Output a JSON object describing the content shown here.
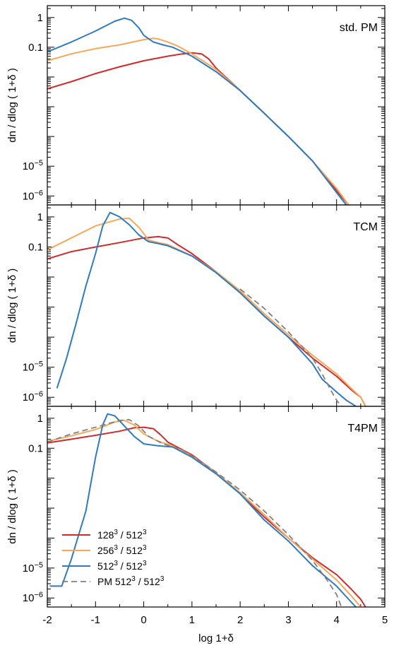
{
  "figure": {
    "xlabel": "log 1+δ",
    "ylabel": "dn / dlog ( 1+δ )",
    "xlim": [
      -2,
      5
    ],
    "x_ticks": [
      "-2",
      "-1",
      "0",
      "1",
      "2",
      "3",
      "4",
      "5"
    ],
    "y_scale": "log",
    "ylim": [
      5e-07,
      2.5
    ],
    "y_tick_labels": [
      {
        "value": 1,
        "base": "1",
        "exp": ""
      },
      {
        "value": 0.1,
        "base": "0.1",
        "exp": ""
      },
      {
        "value": 1e-05,
        "base": "10",
        "exp": "−5"
      },
      {
        "value": 1e-06,
        "base": "10",
        "exp": "−6"
      }
    ],
    "colors": {
      "red": "#d12a2a",
      "orange": "#f5a85a",
      "blue": "#2f7bbf",
      "gray": "#808080"
    }
  },
  "legend": {
    "placement": "lower-left of bottom panel",
    "items": [
      {
        "base": "128",
        "exp1": "3",
        "mid": " / 512",
        "exp2": "3",
        "color": "#d12a2a",
        "dashed": false
      },
      {
        "base": "256",
        "exp1": "3",
        "mid": " / 512",
        "exp2": "3",
        "color": "#f5a85a",
        "dashed": false
      },
      {
        "base": "512",
        "exp1": "3",
        "mid": " / 512",
        "exp2": "3",
        "color": "#2f7bbf",
        "dashed": false
      },
      {
        "base": "PM 512",
        "exp1": "3",
        "mid": " / 512",
        "exp2": "3",
        "color": "#808080",
        "dashed": true
      }
    ]
  },
  "chart_data": [
    {
      "type": "line",
      "label": "std. PM",
      "series": [
        {
          "color": "#d12a2a",
          "x": [
            -2,
            -1.5,
            -1,
            -0.5,
            0,
            0.5,
            0.8,
            1.0,
            1.2,
            1.35,
            1.5,
            2,
            2.5,
            3,
            3.5,
            4,
            4.25
          ],
          "y": [
            0.004,
            0.007,
            0.013,
            0.022,
            0.035,
            0.05,
            0.06,
            0.065,
            0.06,
            0.04,
            0.02,
            0.0035,
            0.0006,
            0.0001,
            1.5e-05,
            1.5e-06,
            5e-07
          ]
        },
        {
          "color": "#f5a85a",
          "x": [
            -2,
            -1.5,
            -1,
            -0.5,
            0,
            0.2,
            0.3,
            0.5,
            0.7,
            1.0,
            1.5,
            2,
            2.5,
            3,
            3.5,
            4,
            4.25
          ],
          "y": [
            0.035,
            0.06,
            0.09,
            0.12,
            0.18,
            0.2,
            0.19,
            0.15,
            0.11,
            0.06,
            0.018,
            0.0035,
            0.0006,
            0.0001,
            1.5e-05,
            1.8e-06,
            5e-07
          ]
        },
        {
          "color": "#2f7bbf",
          "x": [
            -2,
            -1.5,
            -1,
            -0.6,
            -0.4,
            -0.25,
            -0.1,
            0,
            0.2,
            0.4,
            0.6,
            1.0,
            1.5,
            2,
            2.5,
            3,
            3.5,
            4,
            4.2
          ],
          "y": [
            0.07,
            0.15,
            0.35,
            0.75,
            0.95,
            0.8,
            0.45,
            0.25,
            0.15,
            0.12,
            0.1,
            0.05,
            0.015,
            0.0035,
            0.0006,
            0.0001,
            1.5e-05,
            1.3e-06,
            5e-07
          ]
        }
      ]
    },
    {
      "type": "line",
      "label": "TCM",
      "series": [
        {
          "color": "#d12a2a",
          "x": [
            -2,
            -1.5,
            -1,
            -0.5,
            0,
            0.3,
            0.5,
            0.7,
            1.0,
            1.5,
            2,
            2.5,
            3,
            3.5,
            4,
            4.3,
            4.5,
            4.6
          ],
          "y": [
            0.04,
            0.07,
            0.1,
            0.14,
            0.2,
            0.22,
            0.2,
            0.12,
            0.06,
            0.015,
            0.003,
            0.0005,
            0.0001,
            2e-05,
            5e-06,
            1.8e-06,
            1e-06,
            5e-07
          ]
        },
        {
          "color": "#f5a85a",
          "x": [
            -2,
            -1.5,
            -1,
            -0.5,
            -0.3,
            -0.1,
            0.1,
            0.3,
            0.5,
            1.0,
            1.5,
            2,
            2.5,
            3,
            3.5,
            4,
            4.3,
            4.5,
            4.6
          ],
          "y": [
            0.08,
            0.2,
            0.5,
            0.85,
            0.9,
            0.45,
            0.17,
            0.14,
            0.12,
            0.05,
            0.015,
            0.0035,
            0.0006,
            0.00012,
            2.5e-05,
            6e-06,
            2e-06,
            1e-06,
            5e-07
          ]
        },
        {
          "color": "#2f7bbf",
          "x": [
            -1.8,
            -1.6,
            -1.4,
            -1.2,
            -1.0,
            -0.85,
            -0.7,
            -0.5,
            -0.3,
            -0.1,
            0.1,
            0.3,
            0.5,
            1.0,
            1.5,
            2,
            2.5,
            3,
            3.5,
            3.7,
            4,
            4.2,
            4.4
          ],
          "y": [
            2e-06,
            2e-05,
            0.0003,
            0.005,
            0.06,
            0.5,
            1.4,
            1.0,
            0.55,
            0.25,
            0.15,
            0.13,
            0.11,
            0.05,
            0.014,
            0.003,
            0.0005,
            0.0001,
            1.3e-05,
            4e-06,
            1.5e-06,
            8e-07,
            5e-07
          ]
        },
        {
          "color": "#808080",
          "dashed": true,
          "x": [
            2,
            2.5,
            3,
            3.5,
            3.7,
            3.9,
            4.0,
            4.1
          ],
          "y": [
            0.004,
            0.0009,
            0.00015,
            2e-05,
            6e-06,
            1.5e-06,
            8e-07,
            5e-07
          ]
        }
      ]
    },
    {
      "type": "line",
      "label": "T4PM",
      "series": [
        {
          "color": "#d12a2a",
          "x": [
            -2,
            -1.5,
            -1,
            -0.5,
            -0.2,
            0,
            0.2,
            0.35,
            0.5,
            1.0,
            1.5,
            2,
            2.5,
            3,
            3.5,
            4,
            4.3,
            4.5,
            4.6
          ],
          "y": [
            0.15,
            0.2,
            0.27,
            0.37,
            0.48,
            0.5,
            0.45,
            0.28,
            0.16,
            0.06,
            0.015,
            0.003,
            0.0005,
            0.0001,
            2.2e-05,
            6e-06,
            2e-06,
            9e-07,
            5e-07
          ]
        },
        {
          "color": "#f5a85a",
          "x": [
            -2,
            -1.5,
            -1,
            -0.6,
            -0.4,
            -0.2,
            0,
            0.3,
            0.6,
            1.0,
            1.5,
            2,
            2.5,
            3,
            3.5,
            4,
            4.3,
            4.5
          ],
          "y": [
            0.17,
            0.26,
            0.42,
            0.75,
            0.85,
            0.6,
            0.3,
            0.17,
            0.12,
            0.055,
            0.015,
            0.0033,
            0.0006,
            0.0001,
            2e-05,
            4e-06,
            1.2e-06,
            5e-07
          ]
        },
        {
          "color": "#2f7bbf",
          "x": [
            -1.95,
            -1.7,
            -1.5,
            -1.2,
            -1.0,
            -0.85,
            -0.75,
            -0.6,
            -0.4,
            -0.2,
            0,
            0.3,
            0.6,
            1.0,
            1.5,
            2,
            2.5,
            3,
            3.5,
            4,
            4.2,
            4.4
          ],
          "y": [
            2.5e-06,
            2.5e-06,
            2e-05,
            0.0008,
            0.05,
            0.6,
            1.4,
            1.2,
            0.55,
            0.25,
            0.14,
            0.12,
            0.11,
            0.05,
            0.014,
            0.003,
            0.0004,
            8e-05,
            1.2e-05,
            2.5e-06,
            1.1e-06,
            5e-07
          ]
        },
        {
          "color": "#808080",
          "dashed": true,
          "x": [
            -2,
            -1.5,
            -1,
            -0.5,
            -0.3,
            -0.1,
            0.1,
            0.4,
            0.8,
            1.5,
            2,
            2.5,
            3,
            3.5,
            3.8,
            4.0,
            4.1
          ],
          "y": [
            0.16,
            0.3,
            0.5,
            0.85,
            0.9,
            0.55,
            0.25,
            0.14,
            0.09,
            0.016,
            0.004,
            0.0008,
            0.00013,
            1.8e-05,
            4e-06,
            1.3e-06,
            5e-07
          ]
        }
      ]
    }
  ]
}
